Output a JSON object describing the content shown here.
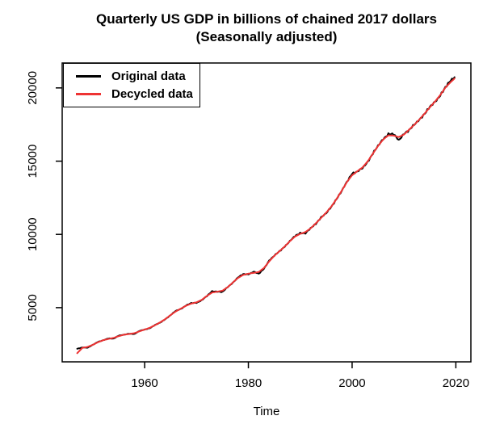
{
  "figure": {
    "title_line1": "Quarterly US GDP in billions of chained 2017 dollars",
    "title_line2": "(Seasonally adjusted)"
  },
  "axes": {
    "x": {
      "label": "Time",
      "ticks": [
        1960,
        1980,
        2000,
        2020
      ],
      "range": [
        1944.1,
        2022.9
      ]
    },
    "y": {
      "ticks": [
        5000,
        10000,
        15000,
        20000
      ],
      "range": [
        1300,
        21700
      ]
    }
  },
  "legend": {
    "position": "topleft",
    "items": [
      {
        "label": "Original data",
        "color": "#000000"
      },
      {
        "label": "Decycled data",
        "color": "#ee3333"
      }
    ]
  },
  "chart_data": {
    "type": "line",
    "title": "Quarterly US GDP in billions of chained 2017 dollars (Seasonally adjusted)",
    "xlabel": "Time",
    "ylabel": "",
    "grid": false,
    "legend_position": "topleft",
    "xlim": [
      1944,
      2023
    ],
    "ylim": [
      1300,
      21700
    ],
    "x_years": [
      1947,
      1948,
      1949,
      1950,
      1951,
      1952,
      1953,
      1954,
      1955,
      1956,
      1957,
      1958,
      1959,
      1960,
      1961,
      1962,
      1963,
      1964,
      1965,
      1966,
      1967,
      1968,
      1969,
      1970,
      1971,
      1972,
      1973,
      1974,
      1975,
      1976,
      1977,
      1978,
      1979,
      1980,
      1981,
      1982,
      1983,
      1984,
      1985,
      1986,
      1987,
      1988,
      1989,
      1990,
      1991,
      1992,
      1993,
      1994,
      1995,
      1996,
      1997,
      1998,
      1999,
      2000,
      2001,
      2002,
      2003,
      2004,
      2005,
      2006,
      2007,
      2008,
      2009,
      2010,
      2011,
      2012,
      2013,
      2014,
      2015,
      2016,
      2017,
      2018,
      2019,
      2019.75
    ],
    "series": [
      {
        "name": "Original data",
        "color": "#000000",
        "values": [
          2191,
          2281,
          2267,
          2464,
          2661,
          2770,
          2900,
          2883,
          3088,
          3153,
          3219,
          3196,
          3416,
          3505,
          3596,
          3815,
          3983,
          4214,
          4488,
          4784,
          4913,
          5154,
          5314,
          5325,
          5501,
          5793,
          6118,
          6087,
          6075,
          6403,
          6698,
          7066,
          7292,
          7270,
          7452,
          7318,
          7655,
          8206,
          8551,
          8850,
          9160,
          9545,
          9898,
          10086,
          10076,
          10429,
          10721,
          11150,
          11451,
          11886,
          12409,
          12967,
          13589,
          14146,
          14287,
          14530,
          14937,
          15520,
          16063,
          16513,
          16843,
          16860,
          16422,
          16865,
          17118,
          17512,
          17827,
          18237,
          18729,
          19047,
          19485,
          20050,
          20511,
          20730
        ]
      },
      {
        "name": "Decycled data",
        "color": "#ee3333",
        "values": [
          1890,
          2255,
          2320,
          2464,
          2639,
          2775,
          2863,
          2939,
          3053,
          3153,
          3197,
          3257,
          3383,
          3506,
          3628,
          3802,
          3999,
          4225,
          4494,
          4742,
          4941,
          5134,
          5277,
          5366,
          5530,
          5801,
          6029,
          6092,
          6160,
          6395,
          6716,
          7031,
          7230,
          7321,
          7373,
          7436,
          7709,
          8155,
          8540,
          8853,
          9179,
          9537,
          9857,
          10037,
          10167,
          10414,
          10755,
          11118,
          11485,
          11908,
          12418,
          12983,
          13573,
          14042,
          14313,
          14571,
          14981,
          15510,
          16040,
          16483,
          16765,
          16746,
          16642,
          16818,
          17153,
          17492,
          17851,
          18258,
          18686,
          19077,
          19517,
          20024,
          20400,
          20640
        ]
      }
    ]
  }
}
